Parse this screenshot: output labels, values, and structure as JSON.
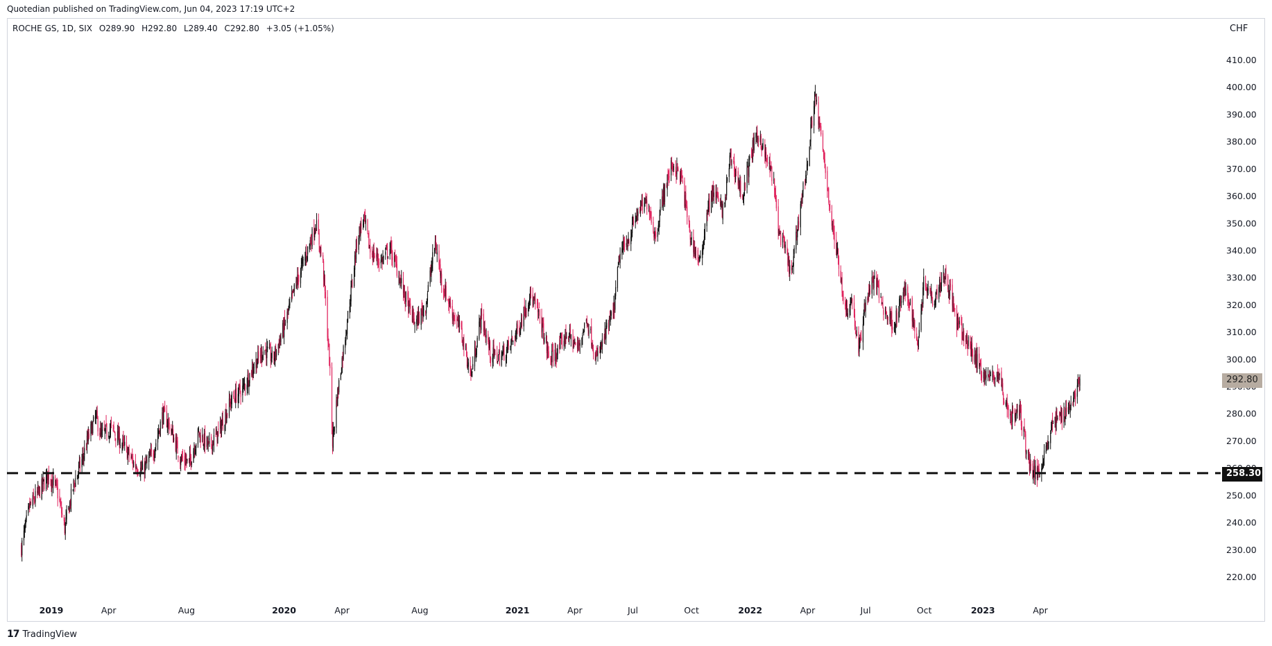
{
  "header": {
    "published": "Quotedian published on TradingView.com, Jun 04, 2023 17:19 UTC+2"
  },
  "legend": {
    "symbol": "ROCHE GS, 1D, SIX",
    "open": "O289.90",
    "high": "H292.80",
    "low": "L289.40",
    "close": "C292.80",
    "change": "+3.05 (+1.05%)"
  },
  "currency": "CHF",
  "last_price_label": "292.80",
  "support_label": "258.30",
  "footer": {
    "brand": "TradingView",
    "logo": "17"
  },
  "colors": {
    "up": "#111111",
    "down": "#e0245e",
    "support": "#111111",
    "last_tag": "#b7aca1"
  },
  "chart_data": {
    "type": "candlestick",
    "title": "ROCHE GS, 1D, SIX",
    "ylabel": "CHF",
    "ylim": [
      210,
      418
    ],
    "yticks": [
      220,
      230,
      240,
      250,
      260,
      270,
      280,
      290,
      300,
      310,
      320,
      330,
      340,
      350,
      360,
      370,
      380,
      390,
      400,
      410
    ],
    "ytick_labels": [
      "220.00",
      "230.00",
      "240.00",
      "250.00",
      "260.00",
      "270.00",
      "280.00",
      "290.00",
      "300.00",
      "310.00",
      "320.00",
      "330.00",
      "340.00",
      "350.00",
      "360.00",
      "370.00",
      "380.00",
      "390.00",
      "400.00",
      "410.00"
    ],
    "xlim": [
      "2018-11-15",
      "2023-07-20"
    ],
    "xticks": [
      {
        "date": "2019-01-01",
        "label": "2019",
        "year": true
      },
      {
        "date": "2019-04-01",
        "label": "Apr",
        "year": false
      },
      {
        "date": "2019-08-01",
        "label": "Aug",
        "year": false
      },
      {
        "date": "2020-01-01",
        "label": "2020",
        "year": true
      },
      {
        "date": "2020-04-01",
        "label": "Apr",
        "year": false
      },
      {
        "date": "2020-08-01",
        "label": "Aug",
        "year": false
      },
      {
        "date": "2021-01-01",
        "label": "2021",
        "year": true
      },
      {
        "date": "2021-04-01",
        "label": "Apr",
        "year": false
      },
      {
        "date": "2021-07-01",
        "label": "Jul",
        "year": false
      },
      {
        "date": "2021-10-01",
        "label": "Oct",
        "year": false
      },
      {
        "date": "2022-01-01",
        "label": "2022",
        "year": true
      },
      {
        "date": "2022-04-01",
        "label": "Apr",
        "year": false
      },
      {
        "date": "2022-07-01",
        "label": "Jul",
        "year": false
      },
      {
        "date": "2022-10-01",
        "label": "Oct",
        "year": false
      },
      {
        "date": "2023-01-01",
        "label": "2023",
        "year": true
      },
      {
        "date": "2023-04-01",
        "label": "Apr",
        "year": false
      }
    ],
    "support_level": 258.3,
    "last_close": 292.8,
    "close_path": [
      [
        "2018-11-15",
        231
      ],
      [
        "2018-11-28",
        246
      ],
      [
        "2018-12-12",
        251
      ],
      [
        "2018-12-28",
        258
      ],
      [
        "2019-01-10",
        252
      ],
      [
        "2019-01-22",
        238
      ],
      [
        "2019-02-05",
        254
      ],
      [
        "2019-02-18",
        263
      ],
      [
        "2019-03-01",
        272
      ],
      [
        "2019-03-12",
        279
      ],
      [
        "2019-03-20",
        272
      ],
      [
        "2019-04-05",
        275
      ],
      [
        "2019-04-25",
        268
      ],
      [
        "2019-05-10",
        262
      ],
      [
        "2019-05-24",
        259
      ],
      [
        "2019-06-10",
        266
      ],
      [
        "2019-06-25",
        280
      ],
      [
        "2019-07-05",
        276
      ],
      [
        "2019-07-22",
        264
      ],
      [
        "2019-08-05",
        262
      ],
      [
        "2019-08-20",
        273
      ],
      [
        "2019-09-05",
        268
      ],
      [
        "2019-09-20",
        273
      ],
      [
        "2019-10-10",
        285
      ],
      [
        "2019-10-30",
        290
      ],
      [
        "2019-11-15",
        298
      ],
      [
        "2019-12-01",
        304
      ],
      [
        "2019-12-15",
        300
      ],
      [
        "2020-01-01",
        312
      ],
      [
        "2020-01-20",
        328
      ],
      [
        "2020-02-05",
        339
      ],
      [
        "2020-02-20",
        350
      ],
      [
        "2020-03-02",
        335
      ],
      [
        "2020-03-12",
        300
      ],
      [
        "2020-03-17",
        270
      ],
      [
        "2020-03-23",
        284
      ],
      [
        "2020-04-01",
        300
      ],
      [
        "2020-04-15",
        325
      ],
      [
        "2020-04-25",
        345
      ],
      [
        "2020-05-05",
        352
      ],
      [
        "2020-05-15",
        340
      ],
      [
        "2020-06-01",
        336
      ],
      [
        "2020-06-15",
        341
      ],
      [
        "2020-06-28",
        332
      ],
      [
        "2020-07-10",
        322
      ],
      [
        "2020-07-25",
        313
      ],
      [
        "2020-08-10",
        320
      ],
      [
        "2020-08-25",
        343
      ],
      [
        "2020-09-05",
        328
      ],
      [
        "2020-09-20",
        318
      ],
      [
        "2020-10-05",
        310
      ],
      [
        "2020-10-20",
        294
      ],
      [
        "2020-11-05",
        316
      ],
      [
        "2020-11-20",
        302
      ],
      [
        "2020-12-05",
        301
      ],
      [
        "2020-12-20",
        305
      ],
      [
        "2021-01-05",
        313
      ],
      [
        "2021-01-20",
        324
      ],
      [
        "2021-02-05",
        316
      ],
      [
        "2021-02-20",
        300
      ],
      [
        "2021-03-05",
        303
      ],
      [
        "2021-03-20",
        310
      ],
      [
        "2021-04-05",
        304
      ],
      [
        "2021-04-20",
        315
      ],
      [
        "2021-05-05",
        300
      ],
      [
        "2021-05-20",
        310
      ],
      [
        "2021-06-01",
        318
      ],
      [
        "2021-06-10",
        338
      ],
      [
        "2021-06-25",
        345
      ],
      [
        "2021-07-10",
        355
      ],
      [
        "2021-07-25",
        358
      ],
      [
        "2021-08-05",
        345
      ],
      [
        "2021-08-20",
        363
      ],
      [
        "2021-09-01",
        372
      ],
      [
        "2021-09-15",
        367
      ],
      [
        "2021-09-30",
        344
      ],
      [
        "2021-10-15",
        335
      ],
      [
        "2021-10-25",
        355
      ],
      [
        "2021-11-05",
        362
      ],
      [
        "2021-11-20",
        354
      ],
      [
        "2021-12-01",
        375
      ],
      [
        "2021-12-10",
        368
      ],
      [
        "2021-12-20",
        360
      ],
      [
        "2022-01-05",
        378
      ],
      [
        "2022-01-15",
        383
      ],
      [
        "2022-01-25",
        374
      ],
      [
        "2022-02-05",
        368
      ],
      [
        "2022-02-15",
        347
      ],
      [
        "2022-02-25",
        340
      ],
      [
        "2022-03-07",
        331
      ],
      [
        "2022-03-20",
        356
      ],
      [
        "2022-04-01",
        372
      ],
      [
        "2022-04-12",
        398
      ],
      [
        "2022-04-20",
        385
      ],
      [
        "2022-05-01",
        366
      ],
      [
        "2022-05-10",
        348
      ],
      [
        "2022-05-20",
        336
      ],
      [
        "2022-05-30",
        318
      ],
      [
        "2022-06-10",
        322
      ],
      [
        "2022-06-20",
        302
      ],
      [
        "2022-07-01",
        322
      ],
      [
        "2022-07-15",
        330
      ],
      [
        "2022-07-30",
        318
      ],
      [
        "2022-08-15",
        313
      ],
      [
        "2022-08-30",
        325
      ],
      [
        "2022-09-10",
        320
      ],
      [
        "2022-09-20",
        305
      ],
      [
        "2022-10-01",
        330
      ],
      [
        "2022-10-15",
        322
      ],
      [
        "2022-11-01",
        332
      ],
      [
        "2022-11-12",
        324
      ],
      [
        "2022-11-20",
        314
      ],
      [
        "2022-12-01",
        309
      ],
      [
        "2022-12-15",
        303
      ],
      [
        "2022-12-30",
        296
      ],
      [
        "2023-01-10",
        293
      ],
      [
        "2023-01-25",
        295
      ],
      [
        "2023-02-05",
        284
      ],
      [
        "2023-02-15",
        279
      ],
      [
        "2023-02-28",
        281
      ],
      [
        "2023-03-08",
        270
      ],
      [
        "2023-03-15",
        262
      ],
      [
        "2023-03-22",
        258
      ],
      [
        "2023-03-30",
        259
      ],
      [
        "2023-04-10",
        268
      ],
      [
        "2023-04-20",
        276
      ],
      [
        "2023-05-05",
        280
      ],
      [
        "2023-05-20",
        284
      ],
      [
        "2023-06-02",
        292.8
      ]
    ]
  }
}
